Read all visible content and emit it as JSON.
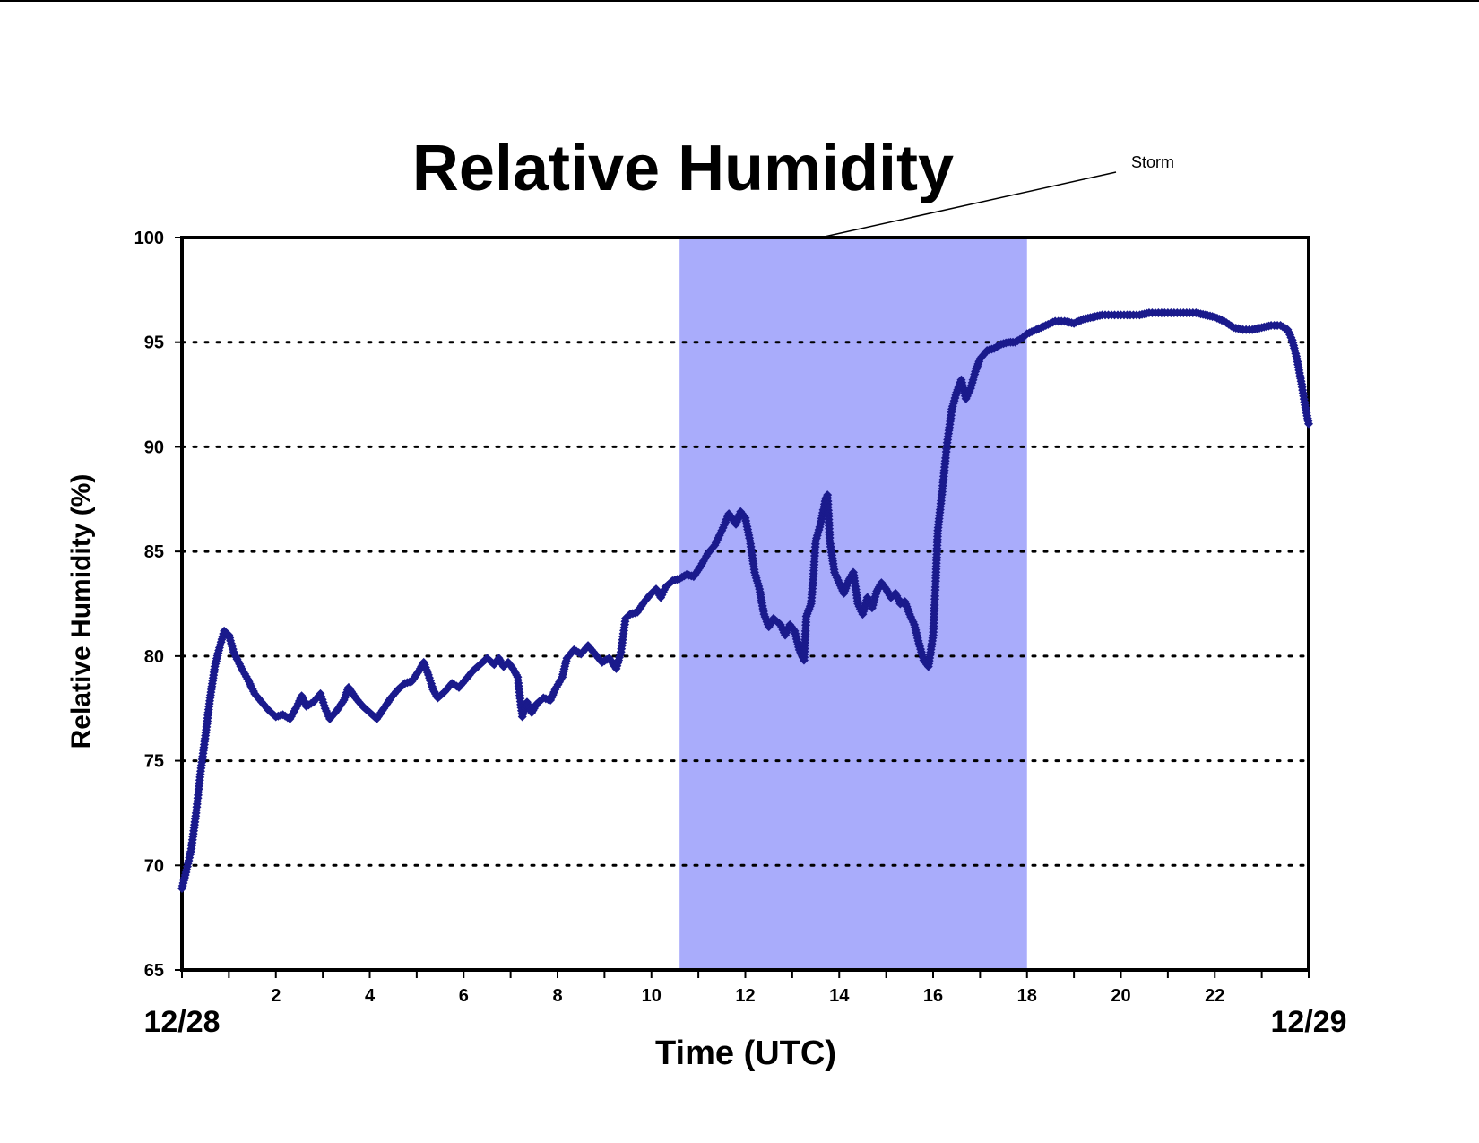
{
  "chart_data": {
    "type": "scatter",
    "title": "Relative Humidity",
    "xlabel": "Time (UTC)",
    "ylabel": "Relative Humidity (%)",
    "xlim": [
      0,
      24
    ],
    "ylim": [
      65,
      100
    ],
    "x_ticks": [
      2,
      4,
      6,
      8,
      10,
      12,
      14,
      16,
      18,
      20,
      22
    ],
    "y_ticks": [
      65,
      70,
      75,
      80,
      85,
      90,
      95,
      100
    ],
    "date_labels": [
      {
        "x": 0,
        "text": "12/28"
      },
      {
        "x": 24,
        "text": "12/29"
      }
    ],
    "gridlines": {
      "y": [
        70,
        75,
        80,
        85,
        90,
        95
      ],
      "style": "dotted"
    },
    "shaded_region": {
      "x0": 10.6,
      "x1": 18.0,
      "color": "#a9acfb"
    },
    "annotation": {
      "text": "Storm",
      "x": 13.6,
      "y": 100
    },
    "marker": {
      "shape": "diamond",
      "color": "#1a1a8c"
    },
    "series": [
      {
        "points": [
          [
            0.0,
            68.9
          ],
          [
            0.1,
            69.8
          ],
          [
            0.2,
            70.8
          ],
          [
            0.3,
            72.5
          ],
          [
            0.4,
            74.5
          ],
          [
            0.5,
            76.2
          ],
          [
            0.6,
            78.0
          ],
          [
            0.7,
            79.5
          ],
          [
            0.8,
            80.4
          ],
          [
            0.9,
            81.2
          ],
          [
            1.0,
            81.0
          ],
          [
            1.1,
            80.2
          ],
          [
            1.25,
            79.5
          ],
          [
            1.4,
            78.9
          ],
          [
            1.55,
            78.2
          ],
          [
            1.7,
            77.8
          ],
          [
            1.85,
            77.4
          ],
          [
            2.0,
            77.1
          ],
          [
            2.15,
            77.2
          ],
          [
            2.3,
            77.0
          ],
          [
            2.45,
            77.6
          ],
          [
            2.55,
            78.1
          ],
          [
            2.65,
            77.6
          ],
          [
            2.8,
            77.8
          ],
          [
            2.95,
            78.2
          ],
          [
            3.05,
            77.5
          ],
          [
            3.15,
            77.0
          ],
          [
            3.3,
            77.4
          ],
          [
            3.45,
            77.9
          ],
          [
            3.55,
            78.5
          ],
          [
            3.7,
            78.0
          ],
          [
            3.85,
            77.6
          ],
          [
            4.0,
            77.3
          ],
          [
            4.15,
            77.0
          ],
          [
            4.3,
            77.5
          ],
          [
            4.45,
            78.0
          ],
          [
            4.6,
            78.4
          ],
          [
            4.75,
            78.7
          ],
          [
            4.9,
            78.8
          ],
          [
            5.05,
            79.3
          ],
          [
            5.15,
            79.7
          ],
          [
            5.25,
            79.1
          ],
          [
            5.35,
            78.4
          ],
          [
            5.45,
            78.0
          ],
          [
            5.6,
            78.3
          ],
          [
            5.75,
            78.7
          ],
          [
            5.9,
            78.5
          ],
          [
            6.05,
            78.9
          ],
          [
            6.2,
            79.3
          ],
          [
            6.35,
            79.6
          ],
          [
            6.5,
            79.9
          ],
          [
            6.65,
            79.6
          ],
          [
            6.75,
            79.9
          ],
          [
            6.85,
            79.5
          ],
          [
            6.95,
            79.7
          ],
          [
            7.05,
            79.4
          ],
          [
            7.15,
            79.0
          ],
          [
            7.25,
            77.1
          ],
          [
            7.35,
            77.8
          ],
          [
            7.45,
            77.3
          ],
          [
            7.55,
            77.7
          ],
          [
            7.7,
            78.0
          ],
          [
            7.85,
            77.9
          ],
          [
            7.95,
            78.4
          ],
          [
            8.1,
            79.0
          ],
          [
            8.2,
            79.9
          ],
          [
            8.35,
            80.3
          ],
          [
            8.5,
            80.1
          ],
          [
            8.65,
            80.5
          ],
          [
            8.8,
            80.1
          ],
          [
            8.95,
            79.7
          ],
          [
            9.1,
            79.9
          ],
          [
            9.25,
            79.4
          ],
          [
            9.35,
            80.2
          ],
          [
            9.45,
            81.8
          ],
          [
            9.55,
            82.0
          ],
          [
            9.7,
            82.1
          ],
          [
            9.85,
            82.6
          ],
          [
            10.0,
            83.0
          ],
          [
            10.1,
            83.2
          ],
          [
            10.2,
            82.8
          ],
          [
            10.3,
            83.3
          ],
          [
            10.45,
            83.6
          ],
          [
            10.6,
            83.7
          ],
          [
            10.75,
            83.9
          ],
          [
            10.9,
            83.8
          ],
          [
            11.05,
            84.3
          ],
          [
            11.2,
            84.9
          ],
          [
            11.35,
            85.3
          ],
          [
            11.5,
            86.0
          ],
          [
            11.65,
            86.8
          ],
          [
            11.8,
            86.3
          ],
          [
            11.9,
            86.9
          ],
          [
            12.0,
            86.6
          ],
          [
            12.1,
            85.5
          ],
          [
            12.2,
            84.0
          ],
          [
            12.3,
            83.2
          ],
          [
            12.4,
            82.0
          ],
          [
            12.5,
            81.4
          ],
          [
            12.6,
            81.8
          ],
          [
            12.75,
            81.5
          ],
          [
            12.85,
            81.0
          ],
          [
            12.95,
            81.5
          ],
          [
            13.05,
            81.2
          ],
          [
            13.15,
            80.3
          ],
          [
            13.25,
            79.8
          ],
          [
            13.3,
            81.9
          ],
          [
            13.4,
            82.5
          ],
          [
            13.45,
            83.8
          ],
          [
            13.5,
            85.5
          ],
          [
            13.6,
            86.3
          ],
          [
            13.7,
            87.4
          ],
          [
            13.75,
            87.7
          ],
          [
            13.8,
            85.5
          ],
          [
            13.9,
            84.0
          ],
          [
            14.0,
            83.5
          ],
          [
            14.1,
            83.0
          ],
          [
            14.2,
            83.6
          ],
          [
            14.3,
            84.0
          ],
          [
            14.4,
            82.5
          ],
          [
            14.5,
            82.0
          ],
          [
            14.6,
            82.8
          ],
          [
            14.7,
            82.3
          ],
          [
            14.8,
            83.1
          ],
          [
            14.9,
            83.5
          ],
          [
            15.0,
            83.2
          ],
          [
            15.1,
            82.8
          ],
          [
            15.2,
            83.0
          ],
          [
            15.3,
            82.5
          ],
          [
            15.4,
            82.6
          ],
          [
            15.5,
            82.0
          ],
          [
            15.6,
            81.5
          ],
          [
            15.7,
            80.6
          ],
          [
            15.8,
            79.8
          ],
          [
            15.9,
            79.5
          ],
          [
            16.0,
            81.0
          ],
          [
            16.05,
            83.3
          ],
          [
            16.1,
            86.0
          ],
          [
            16.2,
            88.0
          ],
          [
            16.3,
            90.2
          ],
          [
            16.4,
            91.8
          ],
          [
            16.5,
            92.6
          ],
          [
            16.6,
            93.2
          ],
          [
            16.7,
            92.3
          ],
          [
            16.8,
            92.8
          ],
          [
            16.9,
            93.6
          ],
          [
            17.0,
            94.2
          ],
          [
            17.15,
            94.6
          ],
          [
            17.3,
            94.7
          ],
          [
            17.45,
            94.9
          ],
          [
            17.6,
            95.0
          ],
          [
            17.75,
            95.0
          ],
          [
            17.9,
            95.2
          ],
          [
            18.0,
            95.4
          ],
          [
            18.2,
            95.6
          ],
          [
            18.4,
            95.8
          ],
          [
            18.6,
            96.0
          ],
          [
            18.8,
            96.0
          ],
          [
            19.0,
            95.9
          ],
          [
            19.2,
            96.1
          ],
          [
            19.4,
            96.2
          ],
          [
            19.6,
            96.3
          ],
          [
            19.8,
            96.3
          ],
          [
            20.0,
            96.3
          ],
          [
            20.2,
            96.3
          ],
          [
            20.4,
            96.3
          ],
          [
            20.6,
            96.4
          ],
          [
            20.8,
            96.4
          ],
          [
            21.0,
            96.4
          ],
          [
            21.2,
            96.4
          ],
          [
            21.4,
            96.4
          ],
          [
            21.6,
            96.4
          ],
          [
            21.8,
            96.3
          ],
          [
            22.0,
            96.2
          ],
          [
            22.2,
            96.0
          ],
          [
            22.4,
            95.7
          ],
          [
            22.6,
            95.6
          ],
          [
            22.8,
            95.6
          ],
          [
            23.0,
            95.7
          ],
          [
            23.2,
            95.8
          ],
          [
            23.4,
            95.8
          ],
          [
            23.55,
            95.6
          ],
          [
            23.65,
            95.1
          ],
          [
            23.75,
            94.2
          ],
          [
            23.85,
            93.0
          ],
          [
            23.92,
            92.0
          ],
          [
            24.0,
            91.1
          ]
        ]
      }
    ]
  }
}
